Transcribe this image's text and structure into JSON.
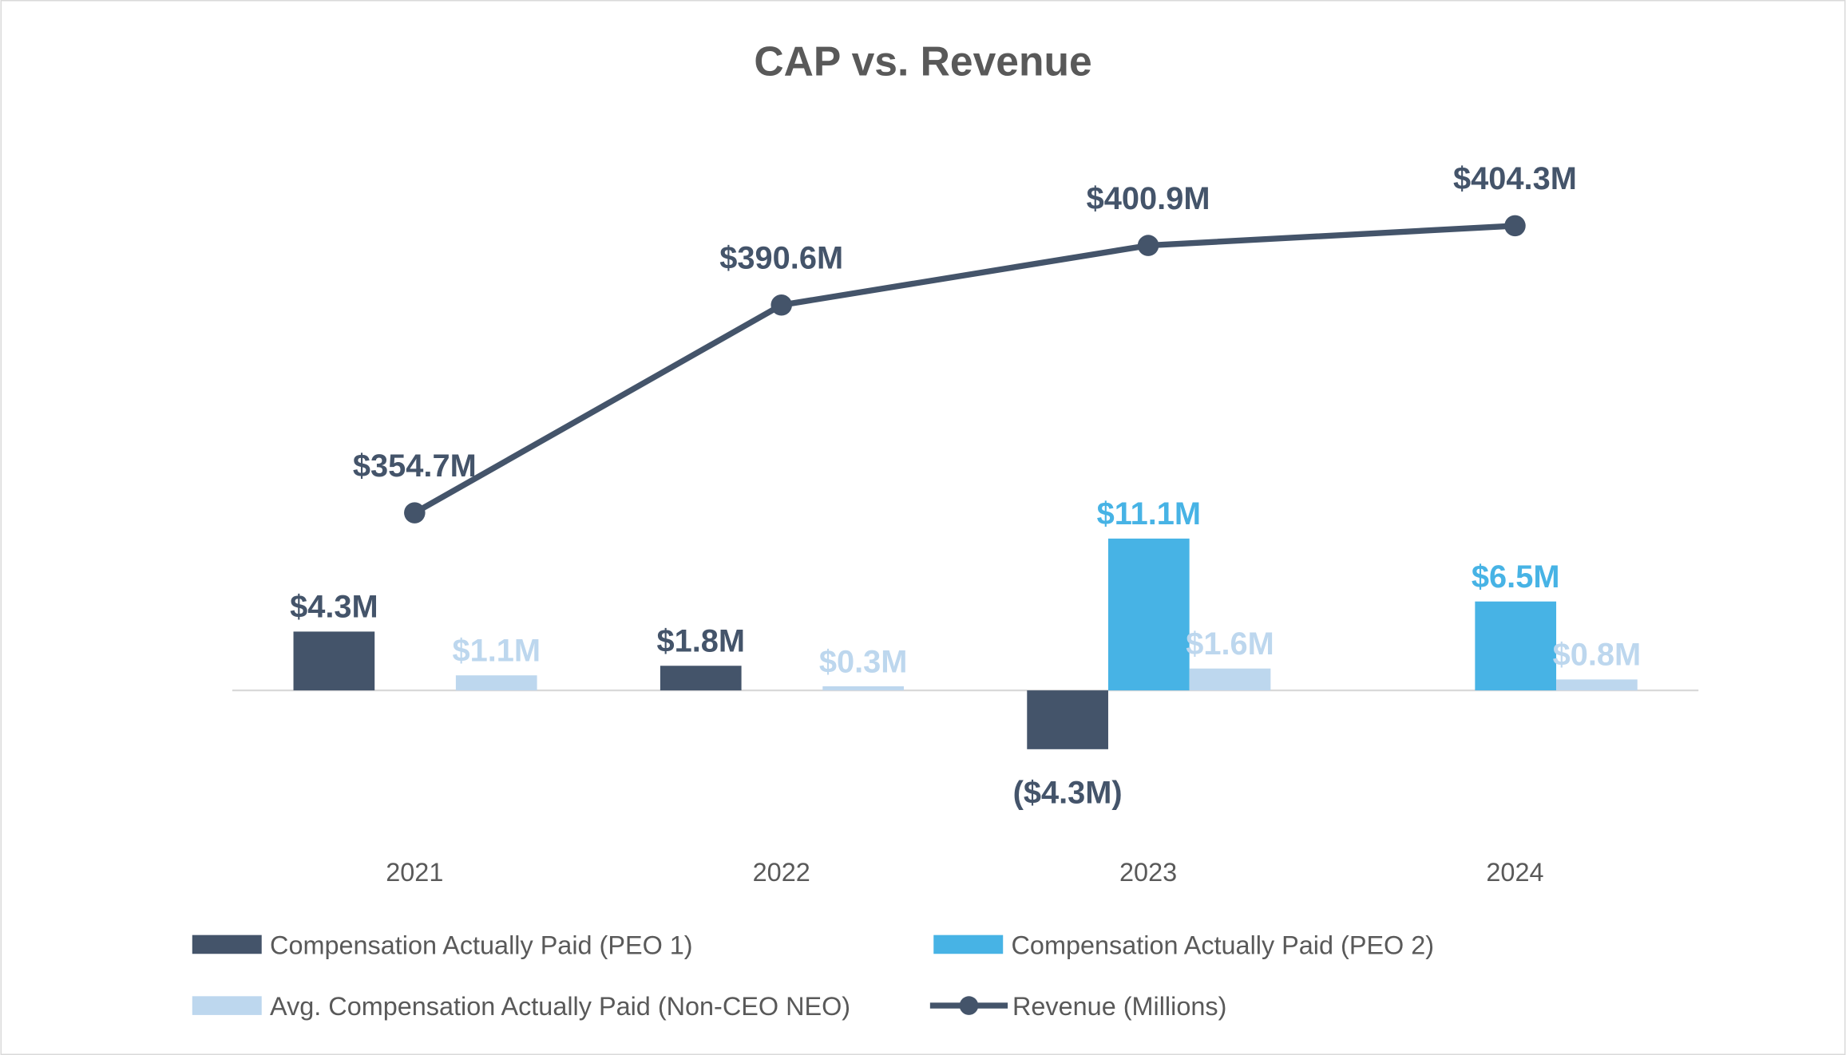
{
  "chart_data": {
    "type": "bar+line",
    "title": "CAP vs. Revenue",
    "categories": [
      "2021",
      "2022",
      "2023",
      "2024"
    ],
    "series": [
      {
        "name": "Compensation Actually Paid (PEO 1)",
        "type": "bar",
        "axis": "left",
        "color": "#44546A",
        "values": [
          4.3,
          1.8,
          -4.3,
          null
        ],
        "labels": [
          "$4.3M",
          "$1.8M",
          "($4.3M)",
          null
        ]
      },
      {
        "name": "Compensation Actually Paid (PEO 2)",
        "type": "bar",
        "axis": "left",
        "color": "#47B3E5",
        "values": [
          null,
          null,
          11.1,
          6.5
        ],
        "labels": [
          null,
          null,
          "$11.1M",
          "$6.5M"
        ]
      },
      {
        "name": "Avg. Compensation Actually Paid (Non-CEO NEO)",
        "type": "bar",
        "axis": "left",
        "color": "#BDD7EE",
        "values": [
          1.1,
          0.3,
          1.6,
          0.8
        ],
        "labels": [
          "$1.1M",
          "$0.3M",
          "$1.6M",
          "$0.8M"
        ]
      },
      {
        "name": "Revenue (Millions)",
        "type": "line",
        "axis": "right",
        "color": "#44546A",
        "values": [
          354.7,
          390.6,
          400.9,
          404.3
        ],
        "labels": [
          "$354.7M",
          "$390.6M",
          "$400.9M",
          "$404.3M"
        ]
      }
    ],
    "units": "$M",
    "grid": false,
    "legend_placement": "bottom",
    "title_color": "#595959"
  }
}
